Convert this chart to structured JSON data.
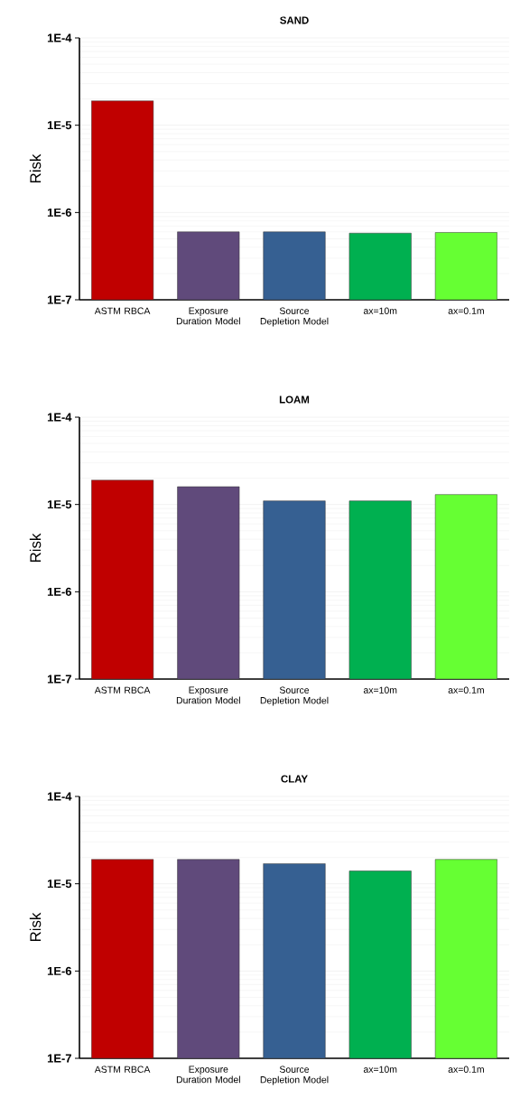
{
  "chart_data": [
    {
      "type": "bar",
      "title": "SAND",
      "ylabel": "Risk",
      "categories": [
        "ASTM RBCA",
        "Exposure Duration Model",
        "Source Depletion Model",
        "ax=10m",
        "ax=0.1m"
      ],
      "values": [
        1.9e-05,
        6e-07,
        6e-07,
        5.8e-07,
        5.9e-07
      ],
      "colors": [
        "#c00000",
        "#604a7b",
        "#366092",
        "#00b050",
        "#66ff33"
      ],
      "log": "y",
      "ylim": [
        1e-07,
        0.0001
      ],
      "yticks": [
        {
          "value": 1e-07,
          "label": "1E-7"
        },
        {
          "value": 1e-06,
          "label": "1E-6"
        },
        {
          "value": 1e-05,
          "label": "1E-5"
        },
        {
          "value": 0.0001,
          "label": "1E-4"
        }
      ],
      "grid": "y"
    },
    {
      "type": "bar",
      "title": "LOAM",
      "ylabel": "Risk",
      "categories": [
        "ASTM RBCA",
        "Exposure Duration Model",
        "Source Depletion Model",
        "ax=10m",
        "ax=0.1m"
      ],
      "values": [
        1.9e-05,
        1.6e-05,
        1.1e-05,
        1.1e-05,
        1.3e-05
      ],
      "colors": [
        "#c00000",
        "#604a7b",
        "#366092",
        "#00b050",
        "#66ff33"
      ],
      "log": "y",
      "ylim": [
        1e-07,
        0.0001
      ],
      "yticks": [
        {
          "value": 1e-07,
          "label": "1E-7"
        },
        {
          "value": 1e-06,
          "label": "1E-6"
        },
        {
          "value": 1e-05,
          "label": "1E-5"
        },
        {
          "value": 0.0001,
          "label": "1E-4"
        }
      ],
      "grid": "y"
    },
    {
      "type": "bar",
      "title": "CLAY",
      "ylabel": "Risk",
      "categories": [
        "ASTM RBCA",
        "Exposure Duration Model",
        "Source Depletion Model",
        "ax=10m",
        "ax=0.1m"
      ],
      "values": [
        1.9e-05,
        1.9e-05,
        1.7e-05,
        1.4e-05,
        1.9e-05
      ],
      "colors": [
        "#c00000",
        "#604a7b",
        "#366092",
        "#00b050",
        "#66ff33"
      ],
      "log": "y",
      "ylim": [
        1e-07,
        0.0001
      ],
      "yticks": [
        {
          "value": 1e-07,
          "label": "1E-7"
        },
        {
          "value": 1e-06,
          "label": "1E-6"
        },
        {
          "value": 1e-05,
          "label": "1E-5"
        },
        {
          "value": 0.0001,
          "label": "1E-4"
        }
      ],
      "grid": "y"
    }
  ]
}
